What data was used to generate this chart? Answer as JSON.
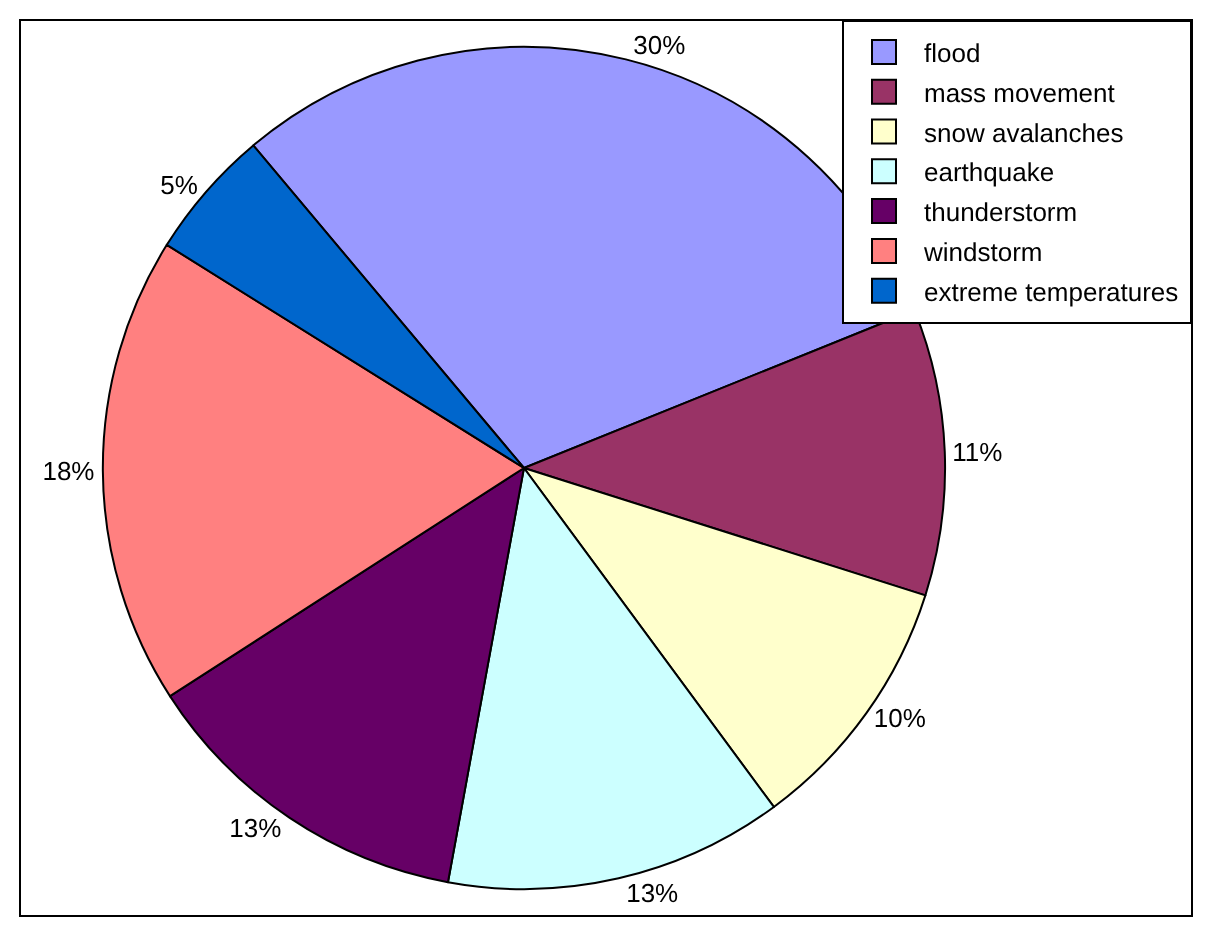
{
  "chart_data": {
    "type": "pie",
    "categories": [
      "flood",
      "mass movement",
      "snow avalanches",
      "earthquake",
      "thunderstorm",
      "windstorm",
      "extreme temperatures"
    ],
    "values": [
      30,
      11,
      10,
      13,
      13,
      18,
      5
    ],
    "value_labels": [
      "30%",
      "11%",
      "10%",
      "13%",
      "13%",
      "18%",
      "5%"
    ],
    "colors": [
      "#9999ff",
      "#993366",
      "#ffffcc",
      "#ccffff",
      "#660066",
      "#ff8080",
      "#0066cc"
    ],
    "legend": "top right"
  }
}
